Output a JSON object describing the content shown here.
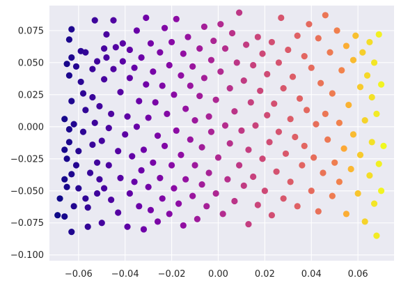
{
  "chart_data": {
    "type": "scatter",
    "title": "",
    "xlabel": "",
    "ylabel": "",
    "xlim": [
      -0.0725,
      0.0755
    ],
    "ylim": [
      -0.1045,
      0.0945
    ],
    "x_ticks": [
      -0.06,
      -0.04,
      -0.02,
      0.0,
      0.02,
      0.04,
      0.06
    ],
    "x_tick_labels": [
      "−0.06",
      "−0.04",
      "−0.02",
      "0.00",
      "0.02",
      "0.04",
      "0.06"
    ],
    "y_ticks": [
      -0.1,
      -0.075,
      -0.05,
      -0.025,
      0.0,
      0.025,
      0.05,
      0.075
    ],
    "y_tick_labels": [
      "−0.100",
      "−0.075",
      "−0.050",
      "−0.025",
      "0.000",
      "0.025",
      "0.050",
      "0.075"
    ],
    "grid": true,
    "background_color": "#eaeaf2",
    "grid_color": "#ffffff",
    "colormap": "plasma",
    "color_by": "x",
    "colormap_range": [
      -0.069,
      0.071
    ],
    "series": [
      {
        "points": [
          [
            -0.069,
            -0.069
          ],
          [
            -0.068,
            -0.056
          ],
          [
            -0.066,
            0.006
          ],
          [
            -0.066,
            -0.018
          ],
          [
            -0.066,
            -0.041
          ],
          [
            -0.066,
            -0.07
          ],
          [
            -0.065,
            0.049
          ],
          [
            -0.065,
            -0.025
          ],
          [
            -0.065,
            -0.047
          ],
          [
            -0.064,
            0.04
          ],
          [
            -0.064,
            -0.002
          ],
          [
            -0.064,
            0.068
          ],
          [
            -0.064,
            -0.012
          ],
          [
            -0.063,
            0.054
          ],
          [
            -0.063,
            0.02
          ],
          [
            -0.063,
            -0.037
          ],
          [
            -0.063,
            0.076
          ],
          [
            -0.063,
            -0.082
          ],
          [
            -0.062,
            -0.062
          ],
          [
            -0.062,
            0.002
          ],
          [
            -0.061,
            -0.03
          ],
          [
            -0.061,
            0.047
          ],
          [
            -0.06,
            -0.048
          ],
          [
            -0.06,
            -0.019
          ],
          [
            -0.059,
            0.035
          ],
          [
            -0.059,
            0.059
          ],
          [
            -0.058,
            -0.004
          ],
          [
            -0.058,
            0.026
          ],
          [
            -0.057,
            -0.056
          ],
          [
            -0.057,
            0.058
          ],
          [
            -0.057,
            0.013
          ],
          [
            -0.056,
            -0.063
          ],
          [
            -0.056,
            -0.078
          ],
          [
            -0.055,
            -0.036
          ],
          [
            -0.054,
            0.045
          ],
          [
            -0.054,
            0.023
          ],
          [
            -0.054,
            -0.014
          ],
          [
            -0.053,
            0.083
          ],
          [
            -0.053,
            0.003
          ],
          [
            -0.052,
            -0.052
          ],
          [
            -0.052,
            -0.028
          ],
          [
            -0.052,
            0.051
          ],
          [
            -0.051,
            -0.041
          ],
          [
            -0.051,
            0.016
          ],
          [
            -0.05,
            -0.011
          ],
          [
            -0.05,
            -0.075
          ],
          [
            -0.049,
            0.061
          ],
          [
            -0.049,
            0.037
          ],
          [
            -0.049,
            -0.048
          ],
          [
            -0.048,
            0.054
          ],
          [
            -0.048,
            0.072
          ],
          [
            -0.047,
            -0.001
          ],
          [
            -0.047,
            -0.03
          ],
          [
            -0.046,
            0.01
          ],
          [
            -0.046,
            -0.057
          ],
          [
            -0.045,
            0.045
          ],
          [
            -0.045,
            0.083
          ],
          [
            -0.044,
            0.062
          ],
          [
            -0.043,
            -0.019
          ],
          [
            -0.043,
            -0.067
          ],
          [
            -0.042,
            0.027
          ],
          [
            -0.042,
            -0.04
          ],
          [
            -0.041,
            0.065
          ],
          [
            -0.041,
            0.051
          ],
          [
            -0.04,
            -0.006
          ],
          [
            -0.039,
            -0.078
          ],
          [
            -0.039,
            0.008
          ],
          [
            -0.038,
            -0.052
          ],
          [
            -0.038,
            0.038
          ],
          [
            -0.038,
            0.06
          ],
          [
            -0.037,
            -0.023
          ],
          [
            -0.036,
            -0.043
          ],
          [
            -0.036,
            0.046
          ],
          [
            -0.035,
            0.0
          ],
          [
            -0.035,
            0.075
          ],
          [
            -0.034,
            -0.062
          ],
          [
            -0.034,
            0.02
          ],
          [
            -0.033,
            -0.034
          ],
          [
            -0.033,
            0.054
          ],
          [
            -0.032,
            -0.018
          ],
          [
            -0.032,
            -0.08
          ],
          [
            -0.031,
            0.033
          ],
          [
            -0.031,
            0.085
          ],
          [
            -0.03,
            -0.047
          ],
          [
            -0.03,
            0.007
          ],
          [
            -0.029,
            0.065
          ],
          [
            -0.029,
            -0.065
          ],
          [
            -0.028,
            0.043
          ],
          [
            -0.028,
            -0.028
          ],
          [
            -0.027,
            0.019
          ],
          [
            -0.026,
            -0.007
          ],
          [
            -0.026,
            -0.074
          ],
          [
            -0.025,
            0.058
          ],
          [
            -0.025,
            -0.04
          ],
          [
            -0.024,
            0.032
          ],
          [
            -0.024,
            -0.056
          ],
          [
            -0.023,
            0.077
          ],
          [
            -0.023,
            -0.015
          ],
          [
            -0.022,
            0.01
          ],
          [
            -0.021,
            0.048
          ],
          [
            -0.021,
            -0.068
          ],
          [
            -0.02,
            -0.03
          ],
          [
            -0.02,
            0.066
          ],
          [
            -0.019,
            -0.048
          ],
          [
            -0.019,
            0.025
          ],
          [
            -0.018,
            -0.003
          ],
          [
            -0.018,
            0.084
          ],
          [
            -0.017,
            -0.06
          ],
          [
            -0.016,
            0.04
          ],
          [
            -0.016,
            -0.022
          ],
          [
            -0.015,
            0.057
          ],
          [
            -0.015,
            -0.077
          ],
          [
            -0.014,
            0.014
          ],
          [
            -0.014,
            -0.041
          ],
          [
            -0.013,
            0.07
          ],
          [
            -0.012,
            -0.01
          ],
          [
            -0.012,
            0.032
          ],
          [
            -0.011,
            -0.054
          ],
          [
            -0.011,
            0.047
          ],
          [
            -0.01,
            -0.03
          ],
          [
            -0.01,
            0.005
          ],
          [
            -0.009,
            -0.072
          ],
          [
            -0.008,
            0.024
          ],
          [
            -0.008,
            0.061
          ],
          [
            -0.007,
            -0.045
          ],
          [
            -0.007,
            -0.016
          ],
          [
            -0.006,
            0.078
          ],
          [
            -0.006,
            0.038
          ],
          [
            -0.005,
            -0.062
          ],
          [
            -0.004,
            0.008
          ],
          [
            -0.004,
            -0.036
          ],
          [
            -0.003,
            0.052
          ],
          [
            -0.003,
            -0.004
          ],
          [
            -0.002,
            0.067
          ],
          [
            -0.001,
            -0.052
          ],
          [
            -0.001,
            0.021
          ],
          [
            0.0,
            -0.024
          ],
          [
            0.001,
            0.08
          ],
          [
            0.001,
            0.043
          ],
          [
            0.002,
            -0.068
          ],
          [
            0.003,
            0.001
          ],
          [
            0.003,
            0.061
          ],
          [
            0.004,
            -0.041
          ],
          [
            0.005,
            0.03
          ],
          [
            0.005,
            -0.013
          ],
          [
            0.006,
            0.073
          ],
          [
            0.007,
            -0.058
          ],
          [
            0.007,
            0.012
          ],
          [
            0.008,
            0.05
          ],
          [
            0.009,
            -0.03
          ],
          [
            0.009,
            0.089
          ],
          [
            0.01,
            -0.003
          ],
          [
            0.011,
            -0.046
          ],
          [
            0.011,
            0.036
          ],
          [
            0.012,
            0.064
          ],
          [
            0.013,
            -0.018
          ],
          [
            0.013,
            -0.076
          ],
          [
            0.014,
            0.019
          ],
          [
            0.015,
            0.048
          ],
          [
            0.015,
            -0.039
          ],
          [
            0.016,
            0.001
          ],
          [
            0.017,
            0.07
          ],
          [
            0.017,
            -0.061
          ],
          [
            0.018,
            0.028
          ],
          [
            0.019,
            -0.025
          ],
          [
            0.019,
            0.057
          ],
          [
            0.02,
            -0.05
          ],
          [
            0.021,
            0.009
          ],
          [
            0.021,
            0.041
          ],
          [
            0.022,
            -0.012
          ],
          [
            0.023,
            0.066
          ],
          [
            0.023,
            -0.069
          ],
          [
            0.024,
            0.018
          ],
          [
            0.025,
            -0.035
          ],
          [
            0.026,
            0.05
          ],
          [
            0.026,
            -0.004
          ],
          [
            0.027,
            0.085
          ],
          [
            0.028,
            -0.056
          ],
          [
            0.028,
            0.03
          ],
          [
            0.029,
            -0.021
          ],
          [
            0.03,
            0.06
          ],
          [
            0.031,
            0.006
          ],
          [
            0.031,
            -0.043
          ],
          [
            0.032,
            0.039
          ],
          [
            0.033,
            -0.008
          ],
          [
            0.034,
            0.071
          ],
          [
            0.034,
            -0.062
          ],
          [
            0.035,
            0.022
          ],
          [
            0.036,
            -0.03
          ],
          [
            0.037,
            0.055
          ],
          [
            0.037,
            -0.015
          ],
          [
            0.038,
            0.013
          ],
          [
            0.039,
            0.08
          ],
          [
            0.04,
            -0.05
          ],
          [
            0.04,
            0.046
          ],
          [
            0.041,
            -0.024
          ],
          [
            0.042,
            0.002
          ],
          [
            0.043,
            0.069
          ],
          [
            0.043,
            -0.066
          ],
          [
            0.044,
            0.034
          ],
          [
            0.045,
            -0.036
          ],
          [
            0.046,
            0.087
          ],
          [
            0.046,
            0.01
          ],
          [
            0.047,
            -0.01
          ],
          [
            0.048,
            0.058
          ],
          [
            0.049,
            -0.054
          ],
          [
            0.049,
            0.026
          ],
          [
            0.05,
            -0.028
          ],
          [
            0.051,
            0.075
          ],
          [
            0.052,
            0.003
          ],
          [
            0.052,
            -0.043
          ],
          [
            0.053,
            0.044
          ],
          [
            0.054,
            -0.017
          ],
          [
            0.055,
            0.063
          ],
          [
            0.055,
            -0.068
          ],
          [
            0.056,
            0.017
          ],
          [
            0.057,
            -0.033
          ],
          [
            0.058,
            0.052
          ],
          [
            0.058,
            -0.006
          ],
          [
            0.059,
            0.071
          ],
          [
            0.06,
            -0.052
          ],
          [
            0.061,
            0.031
          ],
          [
            0.061,
            -0.022
          ],
          [
            0.062,
            0.058
          ],
          [
            0.063,
            0.005
          ],
          [
            0.063,
            -0.074
          ],
          [
            0.064,
            0.04
          ],
          [
            0.065,
            -0.038
          ],
          [
            0.065,
            0.066
          ],
          [
            0.066,
            -0.012
          ],
          [
            0.066,
            0.023
          ],
          [
            0.067,
            -0.06
          ],
          [
            0.067,
            0.05
          ],
          [
            0.068,
            -0.085
          ],
          [
            0.068,
            0.01
          ],
          [
            0.069,
            -0.029
          ],
          [
            0.069,
            0.072
          ],
          [
            0.07,
            -0.05
          ],
          [
            0.07,
            0.033
          ],
          [
            0.071,
            -0.015
          ]
        ]
      }
    ]
  }
}
